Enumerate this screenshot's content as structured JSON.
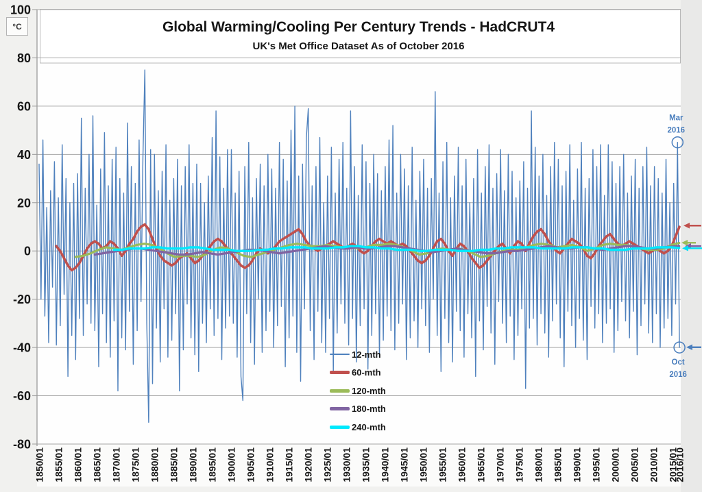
{
  "page": {
    "background": "#f1f1ef",
    "plot_background": "#fefefe",
    "right_strip": "#e9e9e8",
    "title_box_border": "#b8b8b8"
  },
  "unit_label": "°C",
  "chart_data": {
    "type": "line",
    "title": "Global Warming/Cooling Per Century Trends - HadCRUT4",
    "subtitle": "UK's Met Office Dataset As of October 2016",
    "xlabel": "",
    "ylabel": "°C",
    "ylim": [
      -80,
      100
    ],
    "y_ticks": [
      100,
      80,
      60,
      40,
      20,
      0,
      -20,
      -40,
      -60,
      -80
    ],
    "x_range": [
      1850,
      2016.75
    ],
    "grid": "horizontal",
    "grid_color": "#a6a6a6",
    "axis_color": "#9a9a9a",
    "x_tick_years": [
      1850,
      1855,
      1860,
      1865,
      1870,
      1875,
      1880,
      1885,
      1890,
      1895,
      1900,
      1905,
      1910,
      1915,
      1920,
      1925,
      1930,
      1935,
      1940,
      1945,
      1950,
      1955,
      1960,
      1965,
      1970,
      1975,
      1980,
      1985,
      1990,
      1995,
      2000,
      2005,
      2010,
      2015,
      2016.75
    ],
    "x_tick_labels": [
      "1850/01",
      "1855/01",
      "1860/01",
      "1865/01",
      "1870/01",
      "1875/01",
      "1880/01",
      "1885/01",
      "1890/01",
      "1895/01",
      "1900/01",
      "1905/01",
      "1910/01",
      "1915/01",
      "1920/01",
      "1925/01",
      "1930/01",
      "1935/01",
      "1940/01",
      "1945/01",
      "1950/01",
      "1955/01",
      "1960/01",
      "1965/01",
      "1970/01",
      "1975/01",
      "1980/01",
      "1985/01",
      "1990/01",
      "1995/01",
      "2000/01",
      "2005/01",
      "2010/01",
      "2015/01",
      "2016/10"
    ],
    "legend": {
      "position": "inside-bottom-center",
      "entries": [
        "12-mth",
        "60-mth",
        "120-mth",
        "180-mth",
        "240-mth"
      ]
    },
    "series": [
      {
        "name": "12-mth",
        "color": "#4F81BD",
        "width": 1.4,
        "x_start": 1850.0,
        "x_step": 0.5008,
        "values": [
          36,
          -20,
          46,
          -27,
          18,
          -38,
          25,
          -15,
          37,
          -39,
          22,
          -31,
          44,
          -18,
          30,
          -52,
          20,
          -35,
          28,
          -45,
          32,
          -28,
          55,
          -35,
          26,
          -22,
          40,
          -30,
          56,
          -33,
          19,
          -48,
          34,
          -26,
          49,
          -38,
          27,
          -44,
          38,
          -29,
          43,
          -58,
          30,
          -36,
          24,
          -41,
          53,
          -25,
          35,
          -47,
          28,
          -33,
          46,
          -21,
          39,
          75,
          -30,
          -71,
          42,
          -55,
          40,
          -32,
          25,
          -46,
          33,
          -24,
          44,
          -44,
          21,
          -37,
          30,
          -26,
          38,
          -58,
          27,
          -41,
          35,
          -22,
          44,
          -36,
          28,
          -43,
          36,
          -50,
          28,
          -30,
          20,
          -38,
          31,
          -24,
          47,
          -35,
          58,
          -28,
          39,
          -45,
          26,
          -32,
          42,
          -27,
          42,
          -30,
          24,
          -44,
          33,
          -52,
          -62,
          35,
          -26,
          45,
          -38,
          22,
          -47,
          30,
          -20,
          36,
          -42,
          27,
          -33,
          40,
          -25,
          34,
          -40,
          26,
          -31,
          45,
          -23,
          38,
          -48,
          29,
          -36,
          50,
          -27,
          60,
          -42,
          31,
          -54,
          36,
          -24,
          47,
          59,
          -33,
          27,
          -45,
          35,
          -25,
          47,
          -38,
          20,
          -42,
          31,
          -28,
          43,
          -50,
          24,
          -34,
          38,
          -22,
          45,
          -30,
          26,
          -39,
          58,
          -28,
          35,
          -46,
          23,
          -31,
          44,
          -24,
          37,
          -49,
          28,
          -35,
          40,
          -26,
          32,
          -44,
          25,
          -37,
          35,
          -27,
          46,
          -33,
          52,
          -41,
          24,
          -30,
          40,
          -22,
          34,
          -45,
          27,
          -36,
          43,
          -29,
          21,
          -40,
          33,
          -24,
          38,
          -31,
          26,
          -42,
          30,
          -20,
          66,
          -35,
          24,
          -50,
          37,
          -28,
          45,
          -38,
          22,
          -46,
          31,
          -25,
          43,
          -33,
          27,
          -44,
          38,
          -26,
          20,
          -36,
          30,
          -52,
          42,
          -29,
          24,
          -41,
          35,
          -23,
          44,
          -34,
          26,
          -47,
          32,
          -21,
          42,
          -30,
          25,
          -38,
          40,
          -27,
          33,
          -45,
          22,
          -35,
          29,
          -24,
          37,
          -57,
          26,
          -32,
          58,
          -28,
          43,
          -39,
          31,
          -26,
          40,
          -34,
          23,
          -44,
          35,
          -29,
          45,
          -22,
          38,
          -36,
          27,
          -48,
          33,
          -25,
          44,
          -31,
          21,
          -40,
          34,
          -28,
          45,
          -37,
          26,
          -45,
          30,
          -23,
          42,
          -32,
          35,
          -26,
          44,
          -38,
          23,
          -30,
          44,
          -24,
          37,
          -42,
          28,
          -33,
          35,
          -21,
          40,
          -29,
          24,
          -36,
          31,
          -25,
          38,
          -43,
          26,
          -31,
          35,
          -22,
          43,
          -34,
          27,
          -38,
          35,
          -26,
          30,
          -40,
          24,
          -32,
          38,
          -28,
          20,
          -35,
          28,
          -22,
          45,
          -40
        ]
      },
      {
        "name": "60-mth",
        "color": "#C0504D",
        "width": 3.6,
        "x_start": 1854.5,
        "x_step": 1.0015,
        "values": [
          2,
          0,
          -3,
          -6,
          -8,
          -7,
          -5,
          -2,
          1,
          3,
          4,
          3,
          1,
          2,
          4,
          3,
          1,
          -2,
          0,
          3,
          5,
          8,
          10,
          11,
          9,
          5,
          1,
          -2,
          -4,
          -5,
          -6,
          -5,
          -3,
          -2,
          -1,
          -3,
          -5,
          -4,
          -2,
          0,
          2,
          4,
          5,
          4,
          2,
          0,
          -2,
          -4,
          -6,
          -7,
          -6,
          -4,
          -1,
          1,
          0,
          -1,
          0,
          2,
          4,
          5,
          6,
          7,
          8,
          9,
          7,
          4,
          2,
          1,
          0,
          1,
          2,
          3,
          4,
          3,
          2,
          1,
          2,
          3,
          2,
          0,
          -1,
          0,
          2,
          4,
          5,
          4,
          3,
          4,
          3,
          2,
          3,
          2,
          0,
          -2,
          -4,
          -5,
          -4,
          -2,
          1,
          4,
          5,
          3,
          0,
          -2,
          1,
          3,
          2,
          0,
          -3,
          -5,
          -7,
          -6,
          -4,
          -2,
          0,
          2,
          3,
          1,
          -1,
          2,
          4,
          3,
          0,
          3,
          6,
          8,
          9,
          7,
          4,
          2,
          0,
          -1,
          1,
          3,
          5,
          4,
          3,
          1,
          -2,
          -3,
          -1,
          2,
          4,
          6,
          7,
          5,
          3,
          2,
          3,
          4,
          3,
          2,
          1,
          0,
          -1,
          0,
          1,
          0,
          -1,
          0,
          2,
          6,
          10
        ]
      },
      {
        "name": "120-mth",
        "color": "#9BBB59",
        "width": 3.2,
        "x_start": 1859.5,
        "x_step": 1.99,
        "values": [
          -2.5,
          -2,
          -1,
          0.5,
          1.5,
          1,
          0.5,
          1.5,
          2.5,
          3,
          2.5,
          1,
          -1,
          -2.5,
          -2,
          -2,
          -2.5,
          -1.5,
          0.5,
          1.5,
          1,
          -0.5,
          -2,
          -2.5,
          -1.5,
          -0.5,
          0.5,
          1.5,
          2.5,
          3,
          2.5,
          2,
          2,
          2.5,
          2,
          1.5,
          1.5,
          1,
          1.5,
          2.5,
          2.5,
          3,
          2.5,
          1.5,
          0,
          -1.5,
          -1,
          0.5,
          1,
          0.5,
          1,
          0.5,
          -1,
          -2.5,
          -2,
          -1,
          0,
          0.5,
          0.5,
          1.5,
          2.5,
          3,
          2.5,
          1.5,
          2,
          2.5,
          1.5,
          0,
          1,
          2.5,
          3,
          2.5,
          2.5,
          2,
          1,
          0.5,
          0.5,
          1,
          2.5,
          3.3
        ]
      },
      {
        "name": "180-mth",
        "color": "#8064A2",
        "width": 3.3,
        "x_start": 1864.5,
        "x_step": 2.0026,
        "values": [
          -1.5,
          -1,
          -0.5,
          0,
          0.5,
          1,
          1,
          0.5,
          0,
          -0.5,
          -1,
          -1.5,
          -1.5,
          -1,
          -0.5,
          -1,
          -1.5,
          -1,
          -0.5,
          0,
          0.5,
          0.5,
          0,
          -0.5,
          -1,
          -0.5,
          0,
          0.5,
          1,
          1.5,
          2,
          1.5,
          1,
          1,
          1.5,
          1,
          1,
          1.5,
          2,
          2,
          1.5,
          1,
          0.5,
          0,
          -0.5,
          0,
          0.5,
          1,
          0.5,
          0,
          -0.5,
          -1,
          -1,
          -0.5,
          0,
          0,
          0.5,
          1,
          1.5,
          2,
          1.5,
          1,
          1,
          1.5,
          1.5,
          1,
          0.5,
          1,
          1.5,
          2,
          2,
          1.5,
          1,
          1,
          1.5,
          1.8,
          2
        ]
      },
      {
        "name": "240-mth",
        "color": "#00E9FD",
        "width": 3.4,
        "x_start": 1869.5,
        "x_step": 1.9892,
        "values": [
          0.5,
          0.5,
          1,
          1,
          1,
          1.5,
          1.5,
          1,
          1,
          1,
          1.5,
          1.5,
          1,
          0.5,
          0.5,
          0.5,
          0,
          0,
          0,
          0.5,
          0.5,
          1,
          1,
          1.5,
          1.5,
          1.5,
          1,
          1,
          1,
          1.5,
          1.5,
          2,
          2,
          1.5,
          1.5,
          1,
          1,
          0.5,
          0.5,
          0.5,
          0,
          0,
          0.5,
          0.5,
          0.5,
          0,
          0,
          0,
          0.5,
          0.5,
          1,
          1,
          1.5,
          1.5,
          1.5,
          1.5,
          1,
          1,
          1,
          1,
          1.5,
          1.5,
          1.5,
          1,
          1,
          0.5,
          0.5,
          0.5,
          1,
          1,
          1,
          1.5,
          1.5,
          1.5,
          1.2
        ]
      }
    ],
    "annotations": {
      "mar": {
        "lines": [
          "Mar",
          "2016"
        ],
        "x": 2016.27,
        "value": 45,
        "color": "#4A7EBD"
      },
      "oct": {
        "lines": [
          "Oct",
          "2016"
        ],
        "x": 2016.77,
        "value": -40,
        "color": "#4A7EBD"
      }
    },
    "end_arrows": [
      {
        "series": "60-mth",
        "color": "#C0504D",
        "value": 10.5,
        "tip_dx": 4,
        "len": 26
      },
      {
        "series": "120-mth",
        "color": "#9BBB59",
        "value": 3.4,
        "tip_dx": 1,
        "len": 21
      },
      {
        "series": "180-mth",
        "color": "#7E5FA4",
        "value": 2.0,
        "tip_dx": 6,
        "len": 24
      },
      {
        "series": "240-mth",
        "color": "#00E0F5",
        "value": 1.1,
        "tip_dx": 2,
        "len": 29
      },
      {
        "series": "12-mth",
        "color": "#4A7EBD",
        "value": -39.9,
        "tip_dx": 8,
        "len": 22
      }
    ]
  }
}
